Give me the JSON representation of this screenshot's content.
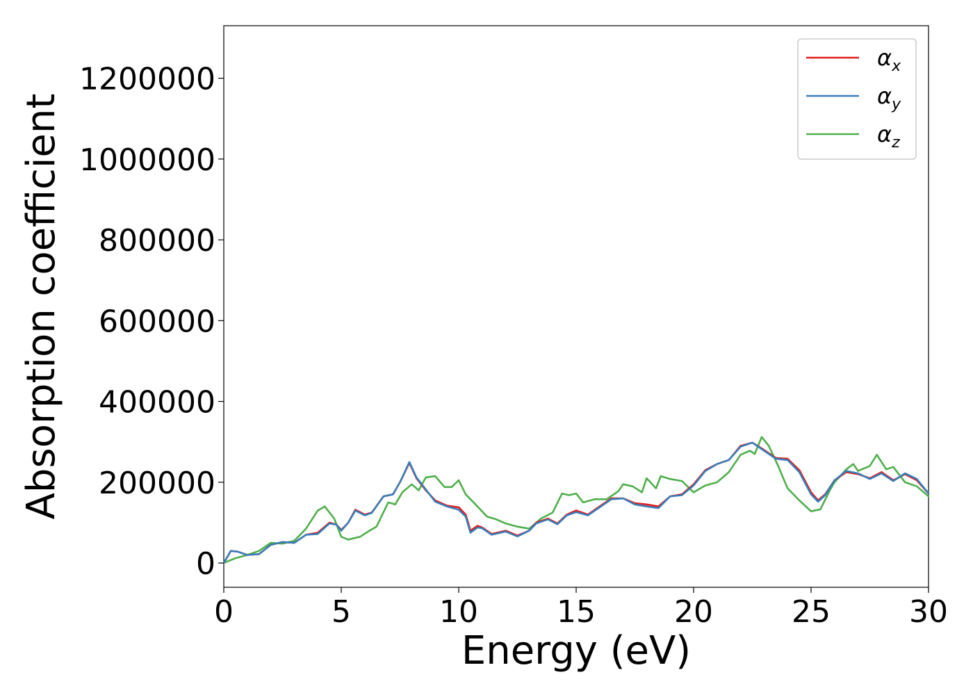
{
  "chart_data": {
    "type": "line",
    "title": "",
    "xlabel": "Energy (eV)",
    "ylabel": "Absorption coefficient",
    "xlim": [
      0,
      30
    ],
    "ylim": [
      -60000,
      1330000
    ],
    "xticks": [
      0,
      5,
      10,
      15,
      20,
      25,
      30
    ],
    "yticks": [
      0,
      200000,
      400000,
      600000,
      800000,
      1000000,
      1200000
    ],
    "xtick_labels": [
      "0",
      "5",
      "10",
      "15",
      "20",
      "25",
      "30"
    ],
    "ytick_labels": [
      "0",
      "200000",
      "400000",
      "600000",
      "800000",
      "1000000",
      "1200000"
    ],
    "grid": false,
    "legend_position": "top-right",
    "series": [
      {
        "name": "αx",
        "symbol": "α",
        "subscript": "x",
        "color": "#e41a1c",
        "points": [
          [
            0,
            0
          ],
          [
            0.3,
            30000
          ],
          [
            0.6,
            28000
          ],
          [
            1,
            20000
          ],
          [
            1.5,
            22000
          ],
          [
            2,
            45000
          ],
          [
            2.5,
            52000
          ],
          [
            3,
            50000
          ],
          [
            3.5,
            70000
          ],
          [
            4,
            75000
          ],
          [
            4.5,
            100000
          ],
          [
            4.8,
            95000
          ],
          [
            5,
            82000
          ],
          [
            5.3,
            100000
          ],
          [
            5.6,
            132000
          ],
          [
            6,
            120000
          ],
          [
            6.3,
            125000
          ],
          [
            6.8,
            165000
          ],
          [
            7.2,
            170000
          ],
          [
            7.5,
            200000
          ],
          [
            7.9,
            248000
          ],
          [
            8.2,
            210000
          ],
          [
            8.6,
            180000
          ],
          [
            9,
            155000
          ],
          [
            9.5,
            142000
          ],
          [
            10,
            138000
          ],
          [
            10.3,
            120000
          ],
          [
            10.5,
            80000
          ],
          [
            10.8,
            92000
          ],
          [
            11,
            88000
          ],
          [
            11.4,
            72000
          ],
          [
            12,
            80000
          ],
          [
            12.5,
            68000
          ],
          [
            13,
            80000
          ],
          [
            13.3,
            100000
          ],
          [
            13.8,
            110000
          ],
          [
            14.2,
            98000
          ],
          [
            14.6,
            120000
          ],
          [
            15,
            130000
          ],
          [
            15.5,
            120000
          ],
          [
            16,
            140000
          ],
          [
            16.5,
            160000
          ],
          [
            17,
            160000
          ],
          [
            17.5,
            148000
          ],
          [
            18,
            145000
          ],
          [
            18.5,
            140000
          ],
          [
            19,
            165000
          ],
          [
            19.5,
            170000
          ],
          [
            20,
            195000
          ],
          [
            20.5,
            230000
          ],
          [
            21,
            245000
          ],
          [
            21.5,
            255000
          ],
          [
            22,
            290000
          ],
          [
            22.5,
            298000
          ],
          [
            23,
            280000
          ],
          [
            23.5,
            260000
          ],
          [
            24,
            258000
          ],
          [
            24.5,
            230000
          ],
          [
            25,
            175000
          ],
          [
            25.3,
            155000
          ],
          [
            25.6,
            170000
          ],
          [
            26,
            205000
          ],
          [
            26.5,
            225000
          ],
          [
            27,
            220000
          ],
          [
            27.5,
            210000
          ],
          [
            28,
            225000
          ],
          [
            28.5,
            205000
          ],
          [
            29,
            220000
          ],
          [
            29.5,
            205000
          ],
          [
            30,
            172000
          ]
        ]
      },
      {
        "name": "αy",
        "symbol": "α",
        "subscript": "y",
        "color": "#377eb8",
        "points": [
          [
            0,
            0
          ],
          [
            0.3,
            30000
          ],
          [
            0.6,
            28000
          ],
          [
            1,
            20000
          ],
          [
            1.5,
            22000
          ],
          [
            2,
            45000
          ],
          [
            2.5,
            52000
          ],
          [
            3,
            50000
          ],
          [
            3.5,
            70000
          ],
          [
            4,
            72000
          ],
          [
            4.5,
            98000
          ],
          [
            4.8,
            95000
          ],
          [
            5,
            80000
          ],
          [
            5.3,
            100000
          ],
          [
            5.6,
            130000
          ],
          [
            6,
            118000
          ],
          [
            6.3,
            124000
          ],
          [
            6.8,
            165000
          ],
          [
            7.2,
            170000
          ],
          [
            7.5,
            200000
          ],
          [
            7.9,
            250000
          ],
          [
            8.2,
            212000
          ],
          [
            8.6,
            182000
          ],
          [
            9,
            152000
          ],
          [
            9.5,
            140000
          ],
          [
            10,
            132000
          ],
          [
            10.3,
            115000
          ],
          [
            10.5,
            75000
          ],
          [
            10.8,
            88000
          ],
          [
            11,
            86000
          ],
          [
            11.4,
            70000
          ],
          [
            12,
            78000
          ],
          [
            12.5,
            66000
          ],
          [
            13,
            80000
          ],
          [
            13.3,
            98000
          ],
          [
            13.8,
            108000
          ],
          [
            14.2,
            96000
          ],
          [
            14.6,
            118000
          ],
          [
            15,
            126000
          ],
          [
            15.5,
            118000
          ],
          [
            16,
            138000
          ],
          [
            16.5,
            158000
          ],
          [
            17,
            160000
          ],
          [
            17.5,
            145000
          ],
          [
            18,
            140000
          ],
          [
            18.5,
            136000
          ],
          [
            19,
            165000
          ],
          [
            19.5,
            168000
          ],
          [
            20,
            192000
          ],
          [
            20.5,
            228000
          ],
          [
            21,
            245000
          ],
          [
            21.5,
            255000
          ],
          [
            22,
            288000
          ],
          [
            22.5,
            298000
          ],
          [
            23,
            278000
          ],
          [
            23.5,
            258000
          ],
          [
            24,
            255000
          ],
          [
            24.5,
            225000
          ],
          [
            25,
            170000
          ],
          [
            25.3,
            152000
          ],
          [
            25.6,
            168000
          ],
          [
            26,
            205000
          ],
          [
            26.5,
            228000
          ],
          [
            27,
            222000
          ],
          [
            27.5,
            208000
          ],
          [
            28,
            222000
          ],
          [
            28.5,
            203000
          ],
          [
            29,
            222000
          ],
          [
            29.5,
            208000
          ],
          [
            30,
            172000
          ]
        ]
      },
      {
        "name": "αz",
        "symbol": "α",
        "subscript": "z",
        "color": "#4daf4a",
        "points": [
          [
            0,
            0
          ],
          [
            0.5,
            12000
          ],
          [
            1,
            20000
          ],
          [
            1.5,
            30000
          ],
          [
            2,
            50000
          ],
          [
            2.5,
            48000
          ],
          [
            3,
            55000
          ],
          [
            3.5,
            85000
          ],
          [
            4,
            130000
          ],
          [
            4.3,
            140000
          ],
          [
            4.7,
            110000
          ],
          [
            5,
            65000
          ],
          [
            5.3,
            58000
          ],
          [
            5.8,
            65000
          ],
          [
            6.2,
            80000
          ],
          [
            6.5,
            90000
          ],
          [
            7,
            150000
          ],
          [
            7.3,
            145000
          ],
          [
            7.6,
            175000
          ],
          [
            8,
            195000
          ],
          [
            8.3,
            180000
          ],
          [
            8.6,
            212000
          ],
          [
            9,
            215000
          ],
          [
            9.4,
            188000
          ],
          [
            9.7,
            188000
          ],
          [
            10,
            205000
          ],
          [
            10.3,
            170000
          ],
          [
            10.8,
            140000
          ],
          [
            11.2,
            115000
          ],
          [
            11.6,
            108000
          ],
          [
            12,
            98000
          ],
          [
            12.5,
            90000
          ],
          [
            13,
            85000
          ],
          [
            13.5,
            110000
          ],
          [
            14,
            125000
          ],
          [
            14.4,
            172000
          ],
          [
            14.7,
            168000
          ],
          [
            15,
            172000
          ],
          [
            15.3,
            150000
          ],
          [
            15.8,
            158000
          ],
          [
            16.3,
            158000
          ],
          [
            16.8,
            178000
          ],
          [
            17,
            195000
          ],
          [
            17.4,
            190000
          ],
          [
            17.8,
            175000
          ],
          [
            18,
            210000
          ],
          [
            18.4,
            185000
          ],
          [
            18.6,
            215000
          ],
          [
            19,
            208000
          ],
          [
            19.5,
            203000
          ],
          [
            20,
            175000
          ],
          [
            20.5,
            192000
          ],
          [
            21,
            200000
          ],
          [
            21.5,
            225000
          ],
          [
            22,
            268000
          ],
          [
            22.4,
            278000
          ],
          [
            22.6,
            270000
          ],
          [
            22.9,
            312000
          ],
          [
            23.2,
            290000
          ],
          [
            23.6,
            240000
          ],
          [
            24,
            185000
          ],
          [
            24.5,
            155000
          ],
          [
            25,
            128000
          ],
          [
            25.4,
            133000
          ],
          [
            25.8,
            180000
          ],
          [
            26,
            200000
          ],
          [
            26.5,
            232000
          ],
          [
            26.8,
            245000
          ],
          [
            27,
            228000
          ],
          [
            27.5,
            240000
          ],
          [
            27.8,
            268000
          ],
          [
            28.2,
            232000
          ],
          [
            28.5,
            238000
          ],
          [
            29,
            200000
          ],
          [
            29.5,
            190000
          ],
          [
            30,
            165000
          ]
        ]
      }
    ]
  }
}
